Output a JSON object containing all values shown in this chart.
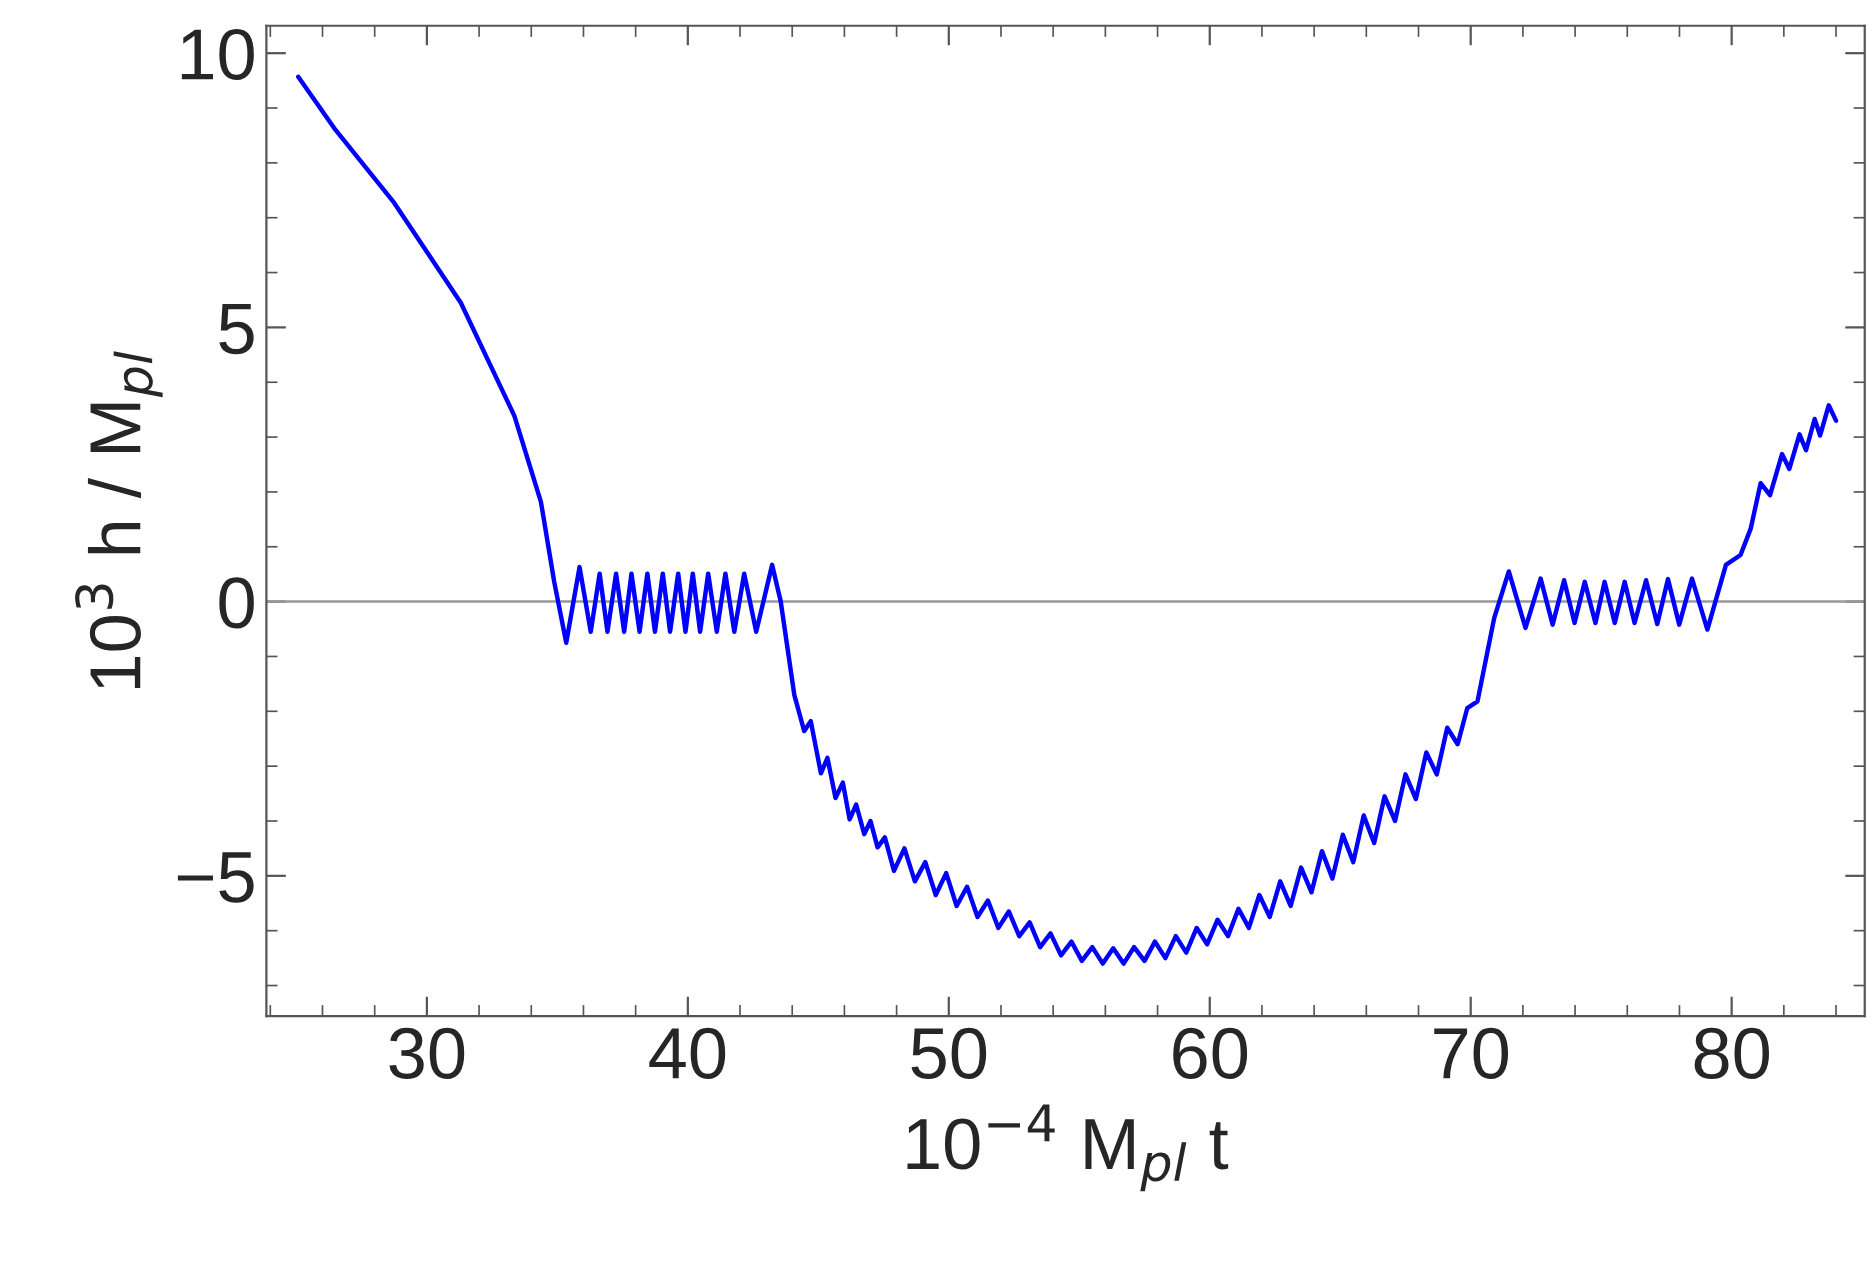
{
  "chart_data": {
    "type": "line",
    "xlabel": "10$^{−4}$ M$_{pl}$ t",
    "ylabel": "10$^{3}$ h / M$_{pl}$",
    "xlim": [
      23.85,
      85.1
    ],
    "ylim": [
      -7.56,
      10.5
    ],
    "xticks": [
      30,
      40,
      50,
      60,
      70,
      80
    ],
    "yticks": [
      {
        "value": -5,
        "label": "−5"
      },
      0,
      5,
      10
    ],
    "grid": false,
    "legend": false,
    "marker": "none",
    "line_style": "solid",
    "ref_lines": [
      {
        "axis": "y",
        "value": 0,
        "color": "#999999"
      }
    ],
    "series": [
      {
        "color": "#0000ff",
        "x": [
          25.07,
          26.5,
          28.75,
          31.3,
          33.35,
          34.37,
          34.88,
          35.34,
          35.85,
          36.28,
          36.62,
          36.92,
          37.25,
          37.56,
          37.84,
          38.15,
          38.45,
          38.74,
          39.04,
          39.32,
          39.63,
          39.91,
          40.19,
          40.47,
          40.78,
          41.11,
          41.44,
          41.78,
          42.16,
          42.62,
          43.23,
          43.56,
          44.08,
          44.46,
          44.71,
          45.1,
          45.35,
          45.66,
          45.94,
          46.2,
          46.45,
          46.76,
          47.0,
          47.27,
          47.55,
          47.9,
          48.3,
          48.7,
          49.1,
          49.5,
          49.9,
          50.3,
          50.7,
          51.1,
          51.5,
          51.9,
          52.3,
          52.7,
          53.1,
          53.5,
          53.9,
          54.3,
          54.7,
          55.1,
          55.5,
          55.9,
          56.3,
          56.7,
          57.1,
          57.5,
          57.9,
          58.3,
          58.7,
          59.1,
          59.5,
          59.9,
          60.3,
          60.7,
          61.1,
          61.5,
          61.9,
          62.3,
          62.7,
          63.1,
          63.5,
          63.9,
          64.3,
          64.7,
          65.1,
          65.5,
          65.9,
          66.3,
          66.7,
          67.1,
          67.5,
          67.9,
          68.3,
          68.7,
          69.1,
          69.5,
          69.87,
          70.26,
          70.9,
          71.46,
          72.1,
          72.68,
          73.14,
          73.58,
          73.98,
          74.37,
          74.78,
          75.13,
          75.52,
          75.9,
          76.28,
          76.72,
          77.15,
          77.56,
          77.99,
          78.48,
          79.07,
          79.78,
          80.34,
          80.73,
          81.11,
          81.47,
          81.93,
          82.21,
          82.6,
          82.85,
          83.18,
          83.39,
          83.72,
          84.0
        ],
        "values": [
          9.57,
          8.6,
          7.27,
          5.45,
          3.39,
          1.82,
          0.36,
          -0.75,
          0.63,
          -0.55,
          0.51,
          -0.55,
          0.51,
          -0.55,
          0.51,
          -0.55,
          0.51,
          -0.55,
          0.51,
          -0.55,
          0.51,
          -0.55,
          0.51,
          -0.55,
          0.51,
          -0.55,
          0.51,
          -0.55,
          0.51,
          -0.55,
          0.67,
          0.0,
          -1.7,
          -2.36,
          -2.18,
          -3.13,
          -2.85,
          -3.58,
          -3.3,
          -3.97,
          -3.7,
          -4.24,
          -4.0,
          -4.48,
          -4.3,
          -4.91,
          -4.5,
          -5.1,
          -4.75,
          -5.35,
          -4.95,
          -5.55,
          -5.2,
          -5.75,
          -5.45,
          -5.95,
          -5.65,
          -6.1,
          -5.85,
          -6.3,
          -6.05,
          -6.45,
          -6.2,
          -6.55,
          -6.3,
          -6.6,
          -6.32,
          -6.6,
          -6.3,
          -6.55,
          -6.2,
          -6.5,
          -6.1,
          -6.4,
          -5.95,
          -6.25,
          -5.8,
          -6.1,
          -5.6,
          -5.95,
          -5.35,
          -5.75,
          -5.1,
          -5.55,
          -4.85,
          -5.3,
          -4.55,
          -5.05,
          -4.25,
          -4.75,
          -3.9,
          -4.4,
          -3.55,
          -4.0,
          -3.15,
          -3.6,
          -2.75,
          -3.15,
          -2.3,
          -2.6,
          -1.94,
          -1.82,
          -0.3,
          0.55,
          -0.48,
          0.42,
          -0.42,
          0.39,
          -0.39,
          0.36,
          -0.39,
          0.36,
          -0.39,
          0.36,
          -0.39,
          0.39,
          -0.41,
          0.41,
          -0.42,
          0.42,
          -0.51,
          0.67,
          0.85,
          1.33,
          2.16,
          1.94,
          2.69,
          2.42,
          3.05,
          2.76,
          3.33,
          3.03,
          3.58,
          3.3
        ]
      }
    ]
  }
}
